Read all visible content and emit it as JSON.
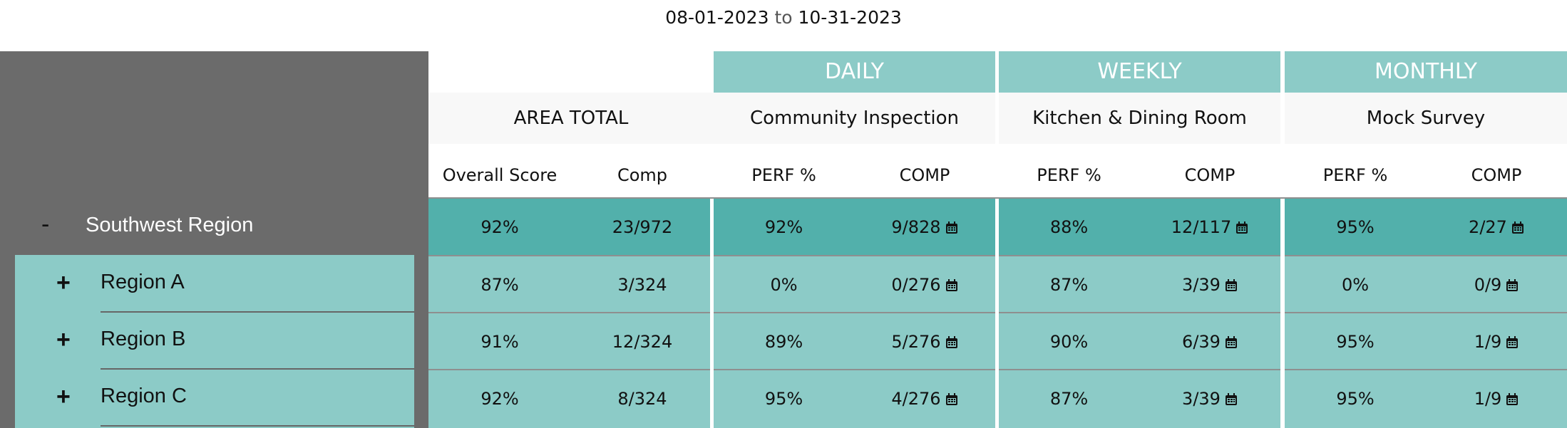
{
  "date_range": {
    "start": "08-01-2023",
    "separator": "to",
    "end": "10-31-2023"
  },
  "hierarchy": {
    "root": {
      "toggle": "-",
      "label": "Southwest Region"
    },
    "children": [
      {
        "toggle": "+",
        "label": "Region A"
      },
      {
        "toggle": "+",
        "label": "Region B"
      },
      {
        "toggle": "+",
        "label": "Region C"
      }
    ]
  },
  "area_total": {
    "header": "AREA TOTAL",
    "col_overall": "Overall Score",
    "col_comp": "Comp"
  },
  "groups": [
    {
      "period": "DAILY",
      "name": "Community Inspection",
      "col_perf": "PERF %",
      "col_comp": "COMP"
    },
    {
      "period": "WEEKLY",
      "name": "Kitchen & Dining Room",
      "col_perf": "PERF %",
      "col_comp": "COMP"
    },
    {
      "period": "MONTHLY",
      "name": "Mock Survey",
      "col_perf": "PERF %",
      "col_comp": "COMP"
    }
  ],
  "rows": [
    {
      "overall": "92%",
      "comp": "23/972",
      "daily_perf": "92%",
      "daily_comp": "9/828",
      "weekly_perf": "88%",
      "weekly_comp": "12/117",
      "monthly_perf": "95%",
      "monthly_comp": "2/27"
    },
    {
      "overall": "87%",
      "comp": "3/324",
      "daily_perf": "0%",
      "daily_comp": "0/276",
      "weekly_perf": "87%",
      "weekly_comp": "3/39",
      "monthly_perf": "0%",
      "monthly_comp": "0/9"
    },
    {
      "overall": "91%",
      "comp": "12/324",
      "daily_perf": "89%",
      "daily_comp": "5/276",
      "weekly_perf": "90%",
      "weekly_comp": "6/39",
      "monthly_perf": "95%",
      "monthly_comp": "1/9"
    },
    {
      "overall": "92%",
      "comp": "8/324",
      "daily_perf": "95%",
      "daily_comp": "4/276",
      "weekly_perf": "87%",
      "weekly_comp": "3/39",
      "monthly_perf": "95%",
      "monthly_comp": "1/9"
    }
  ],
  "icons": {
    "calendar": "calendar-icon"
  },
  "colors": {
    "panel_gray": "#6b6b6b",
    "teal_light": "#8ccbc7",
    "teal_dark": "#52b0ab"
  }
}
